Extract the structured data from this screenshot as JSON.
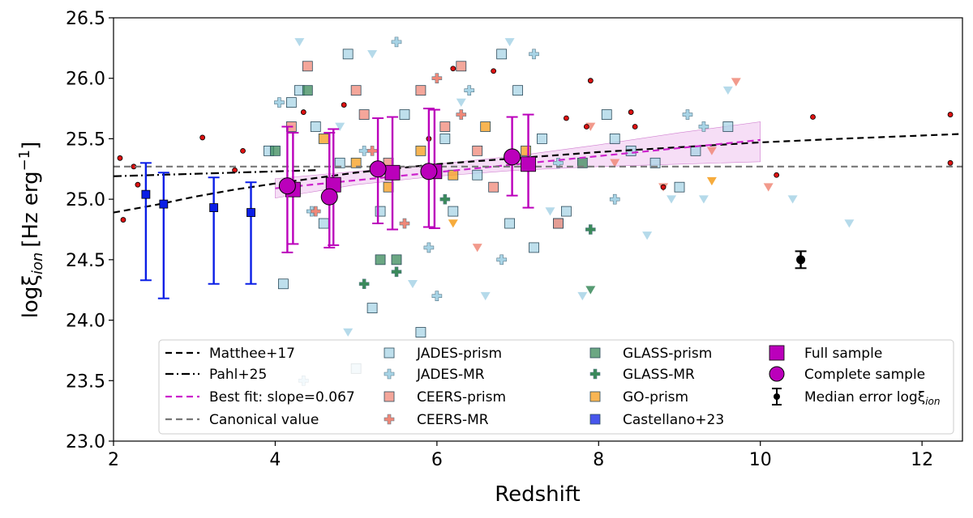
{
  "chart_data": {
    "type": "scatter",
    "xlabel": "Redshift",
    "ylabel_main": "logξ",
    "ylabel_sub": "ion",
    "ylabel_unit": "[Hz erg",
    "ylabel_exp": "−1",
    "ylabel_close": "]",
    "xlim": [
      2,
      12.5
    ],
    "ylim": [
      23.0,
      26.5
    ],
    "x_ticks": [
      2,
      4,
      6,
      8,
      10,
      12
    ],
    "y_ticks": [
      23.0,
      23.5,
      24.0,
      24.5,
      25.0,
      25.5,
      26.0,
      26.5
    ],
    "y_tick_labels": [
      "23.0",
      "23.5",
      "24.0",
      "24.5",
      "25.0",
      "25.5",
      "26.0",
      "26.5"
    ],
    "grid": false,
    "legend_placement": "bottom-right",
    "lines": [
      {
        "name": "Matthee+17",
        "style": "dashed",
        "color": "#000000",
        "x": [
          2.0,
          2.5,
          3.0,
          3.5,
          4.0,
          5.0,
          6.0,
          7.0,
          8.0,
          9.0,
          10.0,
          11.0,
          12.5
        ],
        "y": [
          24.89,
          24.95,
          25.02,
          25.08,
          25.13,
          25.22,
          25.29,
          25.34,
          25.39,
          25.43,
          25.47,
          25.5,
          25.54
        ]
      },
      {
        "name": "Pahl+25",
        "style": "dashdot",
        "color": "#000000",
        "x": [
          2.0,
          3.0,
          4.0,
          4.5
        ],
        "y": [
          25.19,
          25.21,
          25.23,
          25.24
        ]
      },
      {
        "name": "Best fit: slope=0.067",
        "style": "dashed",
        "color": "#cc22cc",
        "x": [
          4.0,
          10.0
        ],
        "y": [
          25.09,
          25.49
        ]
      },
      {
        "name": "Canonical value",
        "style": "dashed",
        "color": "#777777",
        "x": [
          2.0,
          12.5
        ],
        "y": [
          25.27,
          25.27
        ]
      }
    ],
    "fit_band": {
      "x": [
        4.0,
        5.0,
        6.0,
        7.0,
        8.0,
        9.0,
        10.0
      ],
      "y_low": [
        25.01,
        25.12,
        25.19,
        25.24,
        25.27,
        25.29,
        25.31
      ],
      "y_high": [
        25.17,
        25.23,
        25.29,
        25.36,
        25.45,
        25.55,
        25.64
      ]
    },
    "series": [
      {
        "name": "Castellano+23",
        "marker": "square",
        "color": "#0a1ee6",
        "points": [
          [
            2.4,
            25.04,
            24.33,
            25.3
          ],
          [
            2.62,
            24.96,
            24.18,
            25.22
          ],
          [
            3.24,
            24.93,
            24.3,
            25.18
          ],
          [
            3.7,
            24.89,
            24.3,
            25.14
          ]
        ]
      },
      {
        "name": "Full sample",
        "marker": "square",
        "color": "#bb00bb",
        "points": [
          [
            4.22,
            25.08,
            24.63,
            25.55
          ],
          [
            4.72,
            25.12,
            24.62,
            25.58
          ],
          [
            5.45,
            25.22,
            24.75,
            25.68
          ],
          [
            5.97,
            25.23,
            24.76,
            25.74
          ],
          [
            7.13,
            25.29,
            24.93,
            25.7
          ]
        ]
      },
      {
        "name": "Complete sample",
        "marker": "circle",
        "color": "#bb00bb",
        "points": [
          [
            4.15,
            25.11,
            24.56,
            25.6
          ],
          [
            4.67,
            25.02,
            24.6,
            25.55
          ],
          [
            5.27,
            25.25,
            24.8,
            25.67
          ],
          [
            5.9,
            25.23,
            24.77,
            25.75
          ],
          [
            6.93,
            25.35,
            25.03,
            25.68
          ]
        ]
      },
      {
        "name": "Median error logξ",
        "marker": "dot",
        "color": "#000000",
        "points": [
          [
            10.5,
            24.5,
            24.43,
            24.57
          ]
        ]
      },
      {
        "name": "JADES-prism",
        "marker": "square",
        "color": "#a8d4e6",
        "points": [
          [
            4.1,
            24.3
          ],
          [
            4.3,
            25.9
          ],
          [
            4.5,
            25.6
          ],
          [
            4.9,
            26.2
          ],
          [
            5.2,
            24.1
          ],
          [
            5.6,
            25.7
          ],
          [
            6.2,
            24.9
          ],
          [
            6.8,
            26.2
          ],
          [
            7.0,
            25.9
          ],
          [
            7.3,
            25.5
          ],
          [
            7.5,
            24.8
          ],
          [
            8.1,
            25.7
          ],
          [
            8.4,
            25.4
          ],
          [
            8.7,
            25.3
          ],
          [
            9.2,
            25.4
          ],
          [
            9.6,
            25.6
          ],
          [
            4.2,
            25.8
          ],
          [
            4.6,
            24.8
          ],
          [
            5.0,
            23.6
          ],
          [
            5.8,
            23.9
          ],
          [
            6.5,
            25.2
          ],
          [
            7.2,
            24.6
          ],
          [
            3.92,
            25.4
          ],
          [
            4.8,
            25.3
          ],
          [
            5.3,
            24.9
          ],
          [
            6.1,
            25.5
          ],
          [
            6.9,
            24.8
          ],
          [
            8.2,
            25.5
          ],
          [
            9.0,
            25.1
          ],
          [
            7.6,
            24.9
          ]
        ]
      },
      {
        "name": "JADES-MR",
        "marker": "plus",
        "color": "#a8d4e6",
        "points": [
          [
            4.05,
            25.8
          ],
          [
            4.45,
            24.9
          ],
          [
            5.1,
            25.4
          ],
          [
            5.5,
            26.3
          ],
          [
            6.0,
            24.2
          ],
          [
            6.8,
            24.5
          ],
          [
            7.2,
            26.2
          ],
          [
            8.2,
            25.0
          ],
          [
            9.1,
            25.7
          ],
          [
            4.35,
            23.5
          ],
          [
            5.9,
            24.6
          ],
          [
            6.4,
            25.9
          ],
          [
            7.5,
            25.3
          ],
          [
            9.3,
            25.6
          ]
        ]
      },
      {
        "name": "JADES-upper",
        "marker": "tri",
        "color": "#a8d4e6",
        "points": [
          [
            4.3,
            26.3
          ],
          [
            4.8,
            25.6
          ],
          [
            5.7,
            24.3
          ],
          [
            6.3,
            25.8
          ],
          [
            6.9,
            26.3
          ],
          [
            7.4,
            24.9
          ],
          [
            8.6,
            24.7
          ],
          [
            9.3,
            25.0
          ],
          [
            9.6,
            25.9
          ],
          [
            10.4,
            25.0
          ],
          [
            11.1,
            24.8
          ],
          [
            4.9,
            23.9
          ],
          [
            5.2,
            26.2
          ],
          [
            6.6,
            24.2
          ],
          [
            7.8,
            24.2
          ],
          [
            8.9,
            25.0
          ]
        ]
      },
      {
        "name": "CEERS-prism",
        "marker": "square",
        "color": "#f08878",
        "points": [
          [
            4.4,
            26.1
          ],
          [
            4.7,
            25.1
          ],
          [
            5.1,
            25.7
          ],
          [
            5.4,
            25.3
          ],
          [
            5.8,
            25.9
          ],
          [
            6.3,
            26.1
          ],
          [
            6.7,
            25.1
          ],
          [
            7.5,
            24.8
          ],
          [
            6.1,
            25.6
          ],
          [
            4.2,
            25.6
          ],
          [
            5.0,
            25.9
          ],
          [
            6.5,
            25.4
          ]
        ]
      },
      {
        "name": "CEERS-MR",
        "marker": "plus",
        "color": "#f08878",
        "points": [
          [
            4.5,
            24.9
          ],
          [
            5.2,
            25.4
          ],
          [
            5.6,
            24.8
          ],
          [
            6.3,
            25.7
          ],
          [
            6.0,
            26.0
          ]
        ]
      },
      {
        "name": "CEERS-upper",
        "marker": "tri",
        "color": "#f08878",
        "points": [
          [
            7.9,
            25.6
          ],
          [
            8.2,
            25.3
          ],
          [
            8.8,
            25.1
          ],
          [
            9.4,
            25.4
          ],
          [
            9.7,
            25.97
          ],
          [
            10.1,
            25.1
          ],
          [
            6.5,
            24.6
          ]
        ]
      },
      {
        "name": "GLASS-prism",
        "marker": "square",
        "color": "#3a8a5a",
        "points": [
          [
            4.0,
            25.4
          ],
          [
            4.4,
            25.9
          ],
          [
            5.3,
            24.5
          ],
          [
            5.5,
            24.5
          ],
          [
            7.8,
            25.3
          ]
        ]
      },
      {
        "name": "GLASS-MR",
        "marker": "plus",
        "color": "#3a8a5a",
        "points": [
          [
            5.1,
            24.3
          ],
          [
            5.5,
            24.4
          ],
          [
            6.1,
            25.0
          ],
          [
            7.9,
            24.75
          ]
        ]
      },
      {
        "name": "GLASS-upper",
        "marker": "tri",
        "color": "#3a8a5a",
        "points": [
          [
            7.9,
            24.25
          ]
        ]
      },
      {
        "name": "GO-prism",
        "marker": "square",
        "color": "#f59c1a",
        "points": [
          [
            4.6,
            25.5
          ],
          [
            5.0,
            25.3
          ],
          [
            5.4,
            25.1
          ],
          [
            5.8,
            25.4
          ],
          [
            6.2,
            25.2
          ],
          [
            6.6,
            25.6
          ],
          [
            7.1,
            25.4
          ]
        ]
      },
      {
        "name": "GO-upper",
        "marker": "tri",
        "color": "#f59c1a",
        "points": [
          [
            9.4,
            25.15
          ],
          [
            6.2,
            24.8
          ]
        ]
      },
      {
        "name": "literature-dots",
        "marker": "reddot",
        "color": "#dd1111",
        "points": [
          [
            2.08,
            25.34
          ],
          [
            2.12,
            24.83
          ],
          [
            2.25,
            25.27
          ],
          [
            2.3,
            25.12
          ],
          [
            3.1,
            25.51
          ],
          [
            3.5,
            25.24
          ],
          [
            3.6,
            25.4
          ],
          [
            4.35,
            25.72
          ],
          [
            4.85,
            25.78
          ],
          [
            5.9,
            25.5
          ],
          [
            6.2,
            26.08
          ],
          [
            6.7,
            26.06
          ],
          [
            7.6,
            25.67
          ],
          [
            7.9,
            25.98
          ],
          [
            7.85,
            25.6
          ],
          [
            8.45,
            25.6
          ],
          [
            8.4,
            25.72
          ],
          [
            8.8,
            25.1
          ],
          [
            10.2,
            25.2
          ],
          [
            10.65,
            25.68
          ],
          [
            12.35,
            25.7
          ],
          [
            12.35,
            25.3
          ]
        ]
      }
    ],
    "legend": [
      {
        "label": "Matthee+17",
        "marker": "dash",
        "color": "#000000"
      },
      {
        "label": "Pahl+25",
        "marker": "dashdot",
        "color": "#000000"
      },
      {
        "label": "Best fit: slope=0.067",
        "marker": "dash",
        "color": "#cc22cc"
      },
      {
        "label": "Canonical value",
        "marker": "dash",
        "color": "#777777"
      },
      {
        "label": "JADES-prism",
        "marker": "square",
        "color": "#a8d4e6"
      },
      {
        "label": "JADES-MR",
        "marker": "plus",
        "color": "#a8d4e6"
      },
      {
        "label": "CEERS-prism",
        "marker": "square",
        "color": "#f08878"
      },
      {
        "label": "CEERS-MR",
        "marker": "plus",
        "color": "#f08878"
      },
      {
        "label": "GLASS-prism",
        "marker": "square",
        "color": "#3a8a5a"
      },
      {
        "label": "GLASS-MR",
        "marker": "plus",
        "color": "#3a8a5a"
      },
      {
        "label": "GO-prism",
        "marker": "square",
        "color": "#f59c1a"
      },
      {
        "label": "Castellano+23",
        "marker": "square",
        "color": "#0a1ee6"
      },
      {
        "label": "Full sample",
        "marker": "bigsquare",
        "color": "#bb00bb"
      },
      {
        "label": "Complete sample",
        "marker": "bigcircle",
        "color": "#bb00bb"
      },
      {
        "label": "Median error logξ",
        "label_sub": "ion",
        "marker": "errdot",
        "color": "#000000"
      }
    ]
  }
}
